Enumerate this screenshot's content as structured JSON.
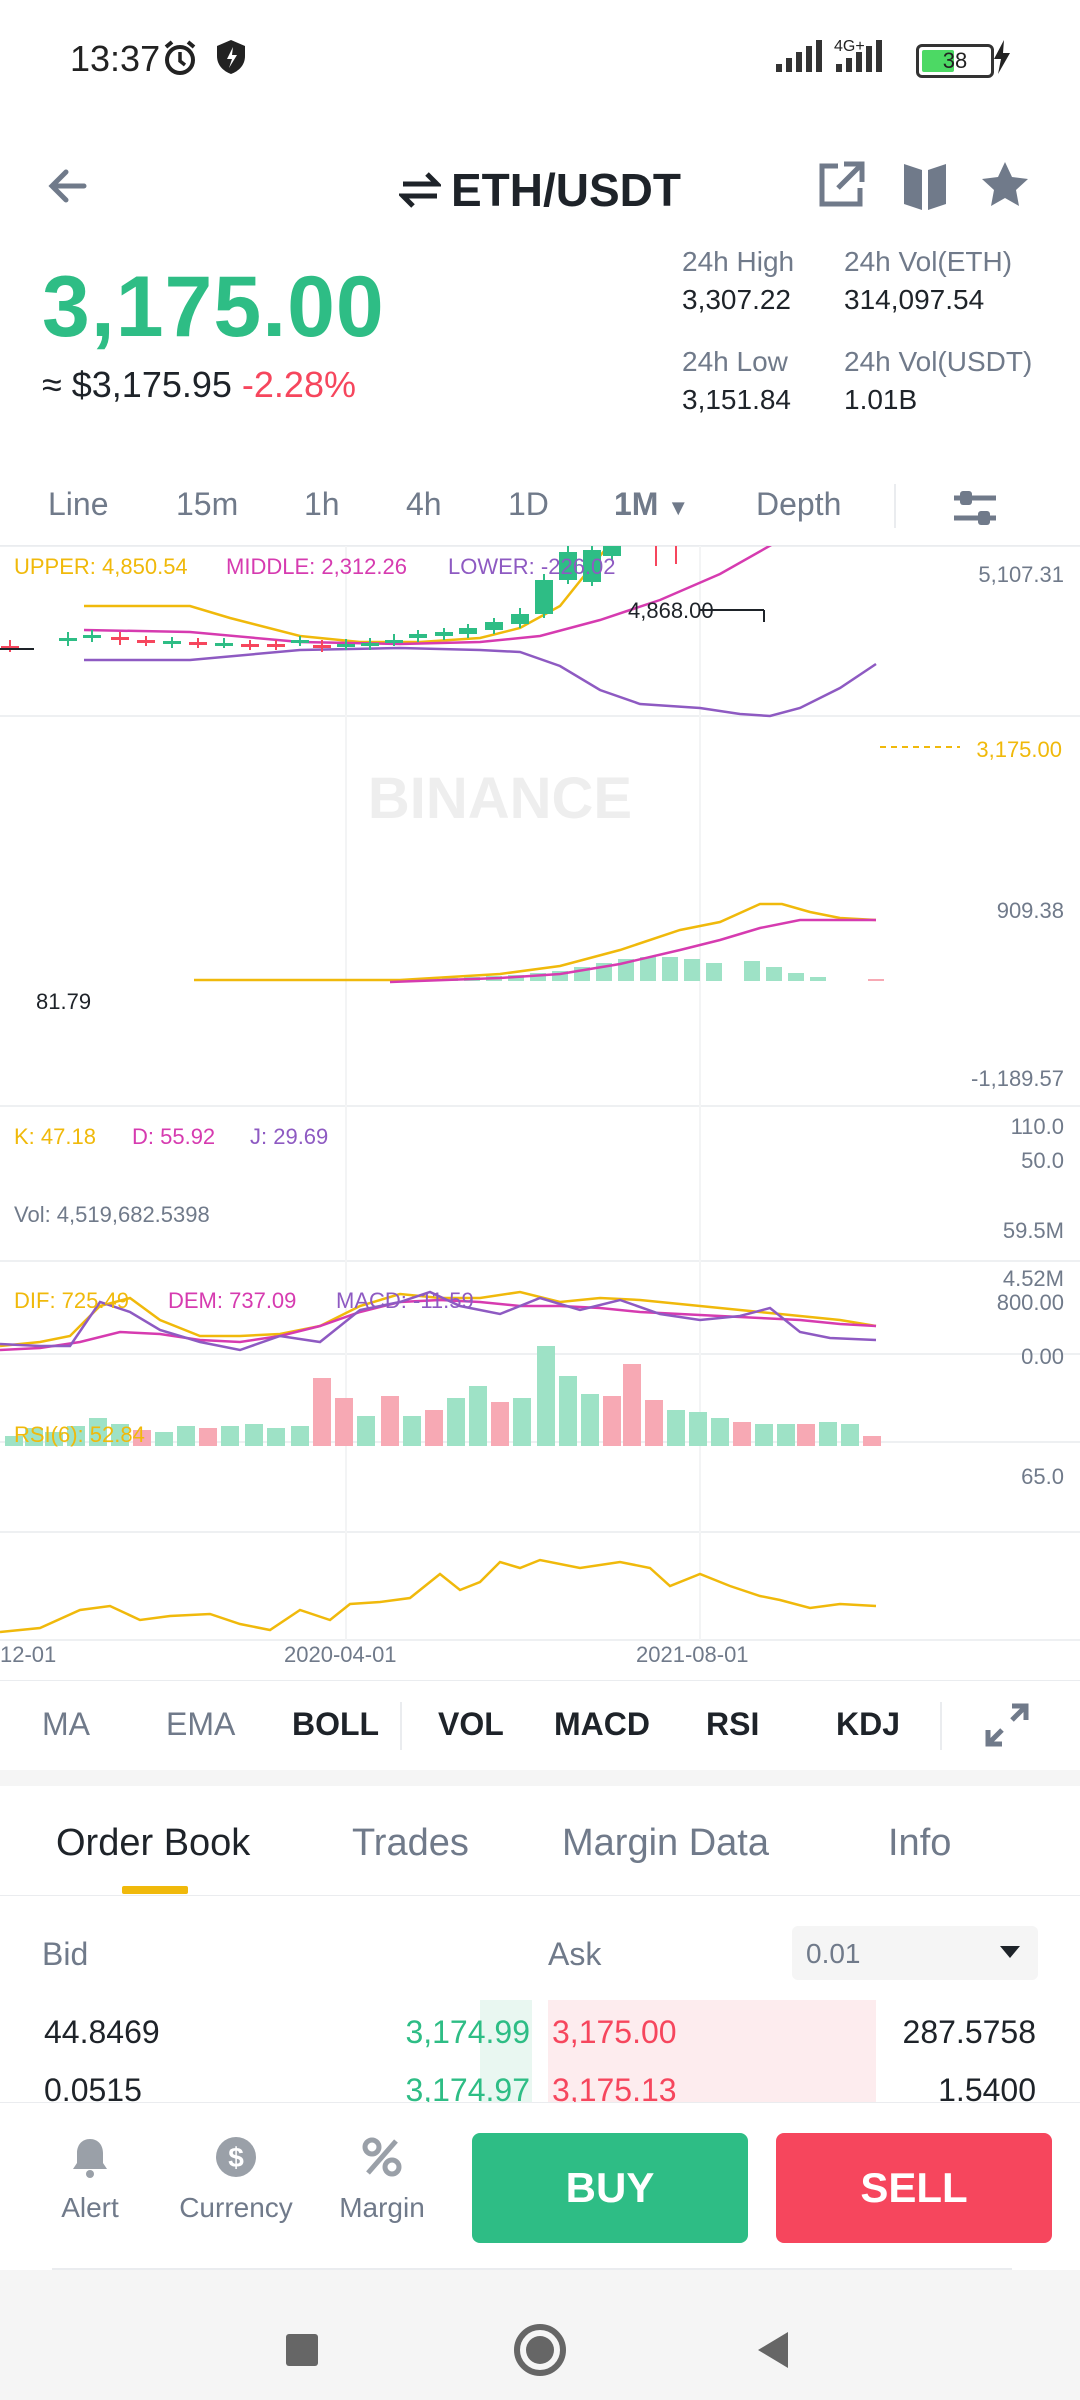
{
  "status": {
    "time": "13:37",
    "battery": "38",
    "network": "4G+"
  },
  "header": {
    "pair": "ETH/USDT"
  },
  "price": {
    "last": "3,175.00",
    "approx": "≈ $3,175.95",
    "change": "-2.28%"
  },
  "stats": {
    "high_label": "24h High",
    "high": "3,307.22",
    "low_label": "24h Low",
    "low": "3,151.84",
    "vol_eth_label": "24h Vol(ETH)",
    "vol_eth": "314,097.54",
    "vol_usdt_label": "24h Vol(USDT)",
    "vol_usdt": "1.01B"
  },
  "timeframes": [
    "Line",
    "15m",
    "1h",
    "4h",
    "1D",
    "1M",
    "Depth"
  ],
  "active_timeframe": "1M",
  "chart": {
    "boll": {
      "upper": "UPPER: 4,850.54",
      "middle": "MIDDLE: 2,312.26",
      "lower": "LOWER: -226.02"
    },
    "axis_main": [
      "5,107.31",
      "909.38",
      "-1,189.57"
    ],
    "current_price_tag": "3,175.00",
    "high_marker": "4,868.00",
    "low_marker": "81.79",
    "kdj": {
      "k": "K: 47.18",
      "d": "D: 55.92",
      "j": "J: 29.69"
    },
    "kdj_axis": [
      "110.0",
      "50.0"
    ],
    "vol": {
      "label": "Vol: 4,519,682.5398"
    },
    "vol_axis": [
      "59.5M",
      "4.52M"
    ],
    "macd": {
      "dif": "DIF: 725.49",
      "dem": "DEM: 737.09",
      "macd": "MACD: -11.59"
    },
    "macd_axis": [
      "800.00",
      "0.00"
    ],
    "rsi": {
      "label": "RSI(6): 52.84"
    },
    "rsi_axis": [
      "65.0"
    ],
    "x_labels": [
      "12-01",
      "2020-04-01",
      "2021-08-01"
    ],
    "watermark": "BINANCE"
  },
  "indicators": [
    "MA",
    "EMA",
    "BOLL",
    "VOL",
    "MACD",
    "RSI",
    "KDJ"
  ],
  "indicators_active": [
    "BOLL",
    "VOL",
    "MACD",
    "RSI",
    "KDJ"
  ],
  "orderbook": {
    "tabs": [
      "Order Book",
      "Trades",
      "Margin Data",
      "Info"
    ],
    "bid_label": "Bid",
    "ask_label": "Ask",
    "precision": "0.01",
    "rows": [
      {
        "bid_qty": "44.8469",
        "bid_price": "3,174.99",
        "ask_price": "3,175.00",
        "ask_qty": "287.5758"
      },
      {
        "bid_qty": "0.0515",
        "bid_price": "3,174.97",
        "ask_price": "3,175.13",
        "ask_qty": "1.5400"
      }
    ]
  },
  "actions": {
    "alert": "Alert",
    "currency": "Currency",
    "margin": "Margin",
    "buy": "BUY",
    "sell": "SELL"
  },
  "colors": {
    "green": "#2ebd85",
    "red": "#f6465d",
    "yellow": "#f0b90b",
    "purple": "#8e5ac2",
    "pink": "#d63bb0"
  }
}
